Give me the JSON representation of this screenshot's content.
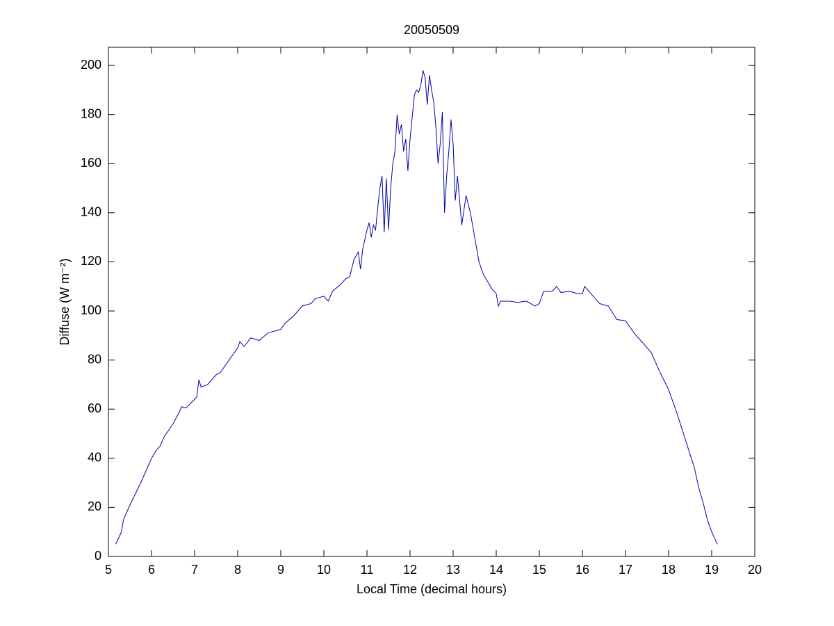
{
  "chart_data": {
    "type": "line",
    "title": "20050509",
    "xlabel": "Local Time (decimal hours)",
    "ylabel": "Diffuse (W m⁻²)",
    "xlim": [
      5,
      20
    ],
    "xticks": [
      5,
      6,
      7,
      8,
      9,
      10,
      11,
      12,
      13,
      14,
      15,
      16,
      17,
      18,
      19,
      20
    ],
    "ylim": [
      0,
      207.4
    ],
    "yticks": [
      0,
      20,
      40,
      60,
      80,
      100,
      120,
      140,
      160,
      180,
      200
    ],
    "grid": false,
    "series": [
      {
        "name": "Diffuse",
        "color": "#0000aa",
        "x": [
          5.17,
          5.25,
          5.3,
          5.35,
          5.5,
          5.75,
          6.0,
          6.1,
          6.2,
          6.3,
          6.5,
          6.65,
          6.7,
          6.8,
          7.0,
          7.05,
          7.1,
          7.15,
          7.3,
          7.5,
          7.6,
          7.8,
          8.0,
          8.05,
          8.15,
          8.3,
          8.5,
          8.7,
          8.9,
          9.0,
          9.1,
          9.3,
          9.5,
          9.7,
          9.8,
          10.0,
          10.1,
          10.2,
          10.4,
          10.5,
          10.6,
          10.7,
          10.8,
          10.85,
          10.9,
          11.0,
          11.05,
          11.1,
          11.15,
          11.2,
          11.25,
          11.3,
          11.35,
          11.4,
          11.45,
          11.5,
          11.55,
          11.6,
          11.65,
          11.7,
          11.75,
          11.8,
          11.85,
          11.9,
          11.95,
          12.0,
          12.1,
          12.15,
          12.2,
          12.25,
          12.3,
          12.35,
          12.4,
          12.45,
          12.5,
          12.55,
          12.6,
          12.65,
          12.7,
          12.75,
          12.8,
          12.85,
          12.9,
          12.95,
          13.0,
          13.05,
          13.1,
          13.2,
          13.3,
          13.4,
          13.5,
          13.6,
          13.7,
          13.8,
          13.9,
          14.0,
          14.05,
          14.1,
          14.3,
          14.5,
          14.7,
          14.9,
          15.0,
          15.1,
          15.3,
          15.4,
          15.5,
          15.7,
          15.9,
          16.0,
          16.05,
          16.2,
          16.4,
          16.6,
          16.8,
          17.0,
          17.2,
          17.4,
          17.6,
          17.8,
          18.0,
          18.2,
          18.4,
          18.6,
          18.7,
          18.8,
          18.9,
          19.0,
          19.13
        ],
        "values": [
          5,
          8,
          10,
          15,
          21,
          30,
          40,
          43,
          45,
          49,
          54,
          59,
          61,
          60.5,
          64,
          65,
          72,
          69,
          70,
          74,
          75,
          80,
          85,
          87.5,
          85.5,
          89,
          88,
          91,
          92,
          92.5,
          95,
          98,
          102,
          103,
          105,
          106,
          104,
          108,
          111,
          113,
          114,
          121,
          124,
          117,
          125,
          133,
          136,
          130,
          135,
          133,
          142,
          150,
          155,
          132,
          154,
          133,
          150,
          160,
          165,
          180,
          172,
          176,
          165,
          170,
          157,
          170,
          188,
          190,
          189,
          192,
          198,
          195,
          184,
          196,
          190,
          185,
          175,
          160,
          168,
          181,
          140,
          155,
          165,
          178,
          168,
          145,
          155,
          135,
          147,
          140,
          130,
          120,
          115,
          112,
          109,
          107,
          102,
          104,
          104,
          103.5,
          104,
          102,
          103,
          108,
          108,
          110,
          107.5,
          108,
          107,
          107,
          110,
          107,
          103,
          102,
          96.5,
          96,
          91,
          87,
          83,
          75,
          68,
          58,
          47,
          36,
          28,
          22,
          15,
          10,
          5
        ]
      }
    ]
  }
}
